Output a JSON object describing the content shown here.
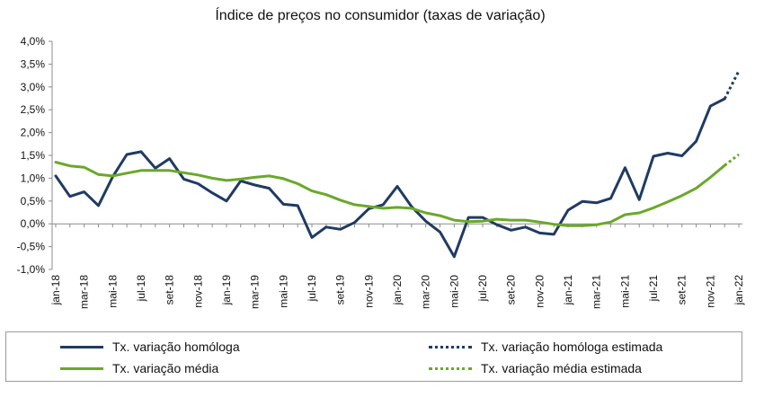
{
  "chart_data": {
    "type": "line",
    "title": "Índice de preços no consumidor  (taxas  de variação)",
    "xlabel": "",
    "ylabel": "",
    "ylim": [
      -1.0,
      4.0
    ],
    "yticks": [
      "4,0%",
      "3,5%",
      "3,0%",
      "2,5%",
      "2,0%",
      "1,5%",
      "1,0%",
      "0,5%",
      "0,0%",
      "-0,5%",
      "-1,0%"
    ],
    "ytick_values": [
      4.0,
      3.5,
      3.0,
      2.5,
      2.0,
      1.5,
      1.0,
      0.5,
      0.0,
      -0.5,
      -1.0
    ],
    "grid": false,
    "legend_placement": "bottom",
    "x_labels": [
      "jan-18",
      "mar-18",
      "mai-18",
      "jul-18",
      "set-18",
      "nov-18",
      "jan-19",
      "mar-19",
      "mai-19",
      "jul-19",
      "set-19",
      "nov-19",
      "jan-20",
      "mar-20",
      "mai-20",
      "jul-20",
      "set-20",
      "nov-20",
      "jan-21",
      "mar-21",
      "mai-21",
      "jul-21",
      "set-21",
      "nov-21",
      "jan-22"
    ],
    "x": [
      "jan-18",
      "fev-18",
      "mar-18",
      "abr-18",
      "mai-18",
      "jun-18",
      "jul-18",
      "ago-18",
      "set-18",
      "out-18",
      "nov-18",
      "dez-18",
      "jan-19",
      "fev-19",
      "mar-19",
      "abr-19",
      "mai-19",
      "jun-19",
      "jul-19",
      "ago-19",
      "set-19",
      "out-19",
      "nov-19",
      "dez-19",
      "jan-20",
      "fev-20",
      "mar-20",
      "abr-20",
      "mai-20",
      "jun-20",
      "jul-20",
      "ago-20",
      "set-20",
      "out-20",
      "nov-20",
      "dez-20",
      "jan-21",
      "fev-21",
      "mar-21",
      "abr-21",
      "mai-21",
      "jun-21",
      "jul-21",
      "ago-21",
      "set-21",
      "out-21",
      "nov-21",
      "dez-21",
      "jan-22"
    ],
    "series": [
      {
        "name": "Tx. variação homóloga",
        "color": "#1f3b63",
        "style": "solid",
        "values": [
          1.05,
          0.6,
          0.7,
          0.4,
          1.03,
          1.52,
          1.58,
          1.22,
          1.43,
          0.98,
          0.88,
          0.68,
          0.5,
          0.94,
          0.85,
          0.78,
          0.43,
          0.4,
          -0.3,
          -0.07,
          -0.12,
          0.03,
          0.33,
          0.42,
          0.82,
          0.38,
          0.06,
          -0.18,
          -0.72,
          0.14,
          0.14,
          -0.02,
          -0.14,
          -0.07,
          -0.2,
          -0.23,
          0.3,
          0.49,
          0.46,
          0.56,
          1.23,
          0.53,
          1.48,
          1.55,
          1.49,
          1.81,
          2.58,
          2.74,
          null
        ]
      },
      {
        "name": "Tx. variação homóloga estimada",
        "color": "#1f3b63",
        "style": "dotted",
        "values": [
          null,
          null,
          null,
          null,
          null,
          null,
          null,
          null,
          null,
          null,
          null,
          null,
          null,
          null,
          null,
          null,
          null,
          null,
          null,
          null,
          null,
          null,
          null,
          null,
          null,
          null,
          null,
          null,
          null,
          null,
          null,
          null,
          null,
          null,
          null,
          null,
          null,
          null,
          null,
          null,
          null,
          null,
          null,
          null,
          null,
          null,
          null,
          2.74,
          3.35
        ]
      },
      {
        "name": "Tx. variação média",
        "color": "#6aa82a",
        "style": "solid",
        "values": [
          1.35,
          1.27,
          1.24,
          1.08,
          1.05,
          1.11,
          1.17,
          1.17,
          1.17,
          1.12,
          1.07,
          1.0,
          0.95,
          0.98,
          1.02,
          1.05,
          0.99,
          0.88,
          0.72,
          0.64,
          0.52,
          0.42,
          0.38,
          0.34,
          0.36,
          0.34,
          0.24,
          0.18,
          0.08,
          0.05,
          0.06,
          0.1,
          0.08,
          0.08,
          0.04,
          -0.01,
          -0.04,
          -0.04,
          -0.02,
          0.04,
          0.2,
          0.24,
          0.35,
          0.48,
          0.62,
          0.78,
          1.02,
          1.28,
          null
        ]
      },
      {
        "name": "Tx. variação média  estimada",
        "color": "#6aa82a",
        "style": "dotted",
        "values": [
          null,
          null,
          null,
          null,
          null,
          null,
          null,
          null,
          null,
          null,
          null,
          null,
          null,
          null,
          null,
          null,
          null,
          null,
          null,
          null,
          null,
          null,
          null,
          null,
          null,
          null,
          null,
          null,
          null,
          null,
          null,
          null,
          null,
          null,
          null,
          null,
          null,
          null,
          null,
          null,
          null,
          null,
          null,
          null,
          null,
          null,
          null,
          1.28,
          1.52
        ]
      }
    ]
  },
  "legend": {
    "items": [
      {
        "label": "Tx. variação homóloga"
      },
      {
        "label": "Tx. variação homóloga estimada"
      },
      {
        "label": "Tx. variação média"
      },
      {
        "label": "Tx. variação média  estimada"
      }
    ]
  }
}
